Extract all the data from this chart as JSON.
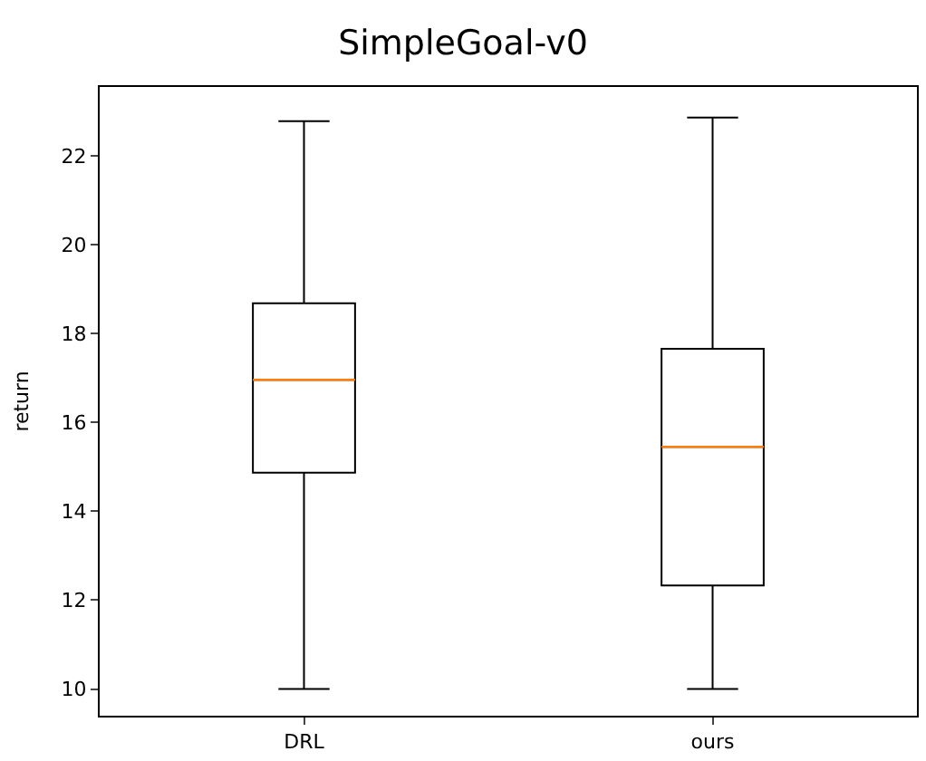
{
  "chart_data": {
    "type": "box",
    "title": "SimpleGoal-v0",
    "ylabel": "return",
    "categories": [
      "DRL",
      "ours"
    ],
    "boxes": [
      {
        "low": 10.0,
        "q1": 14.87,
        "median": 16.96,
        "q3": 18.68,
        "high": 22.78
      },
      {
        "low": 10.0,
        "q1": 12.33,
        "median": 15.45,
        "q3": 17.66,
        "high": 22.86
      }
    ],
    "color": "#000000",
    "ylim": [
      9.4,
      23.55
    ],
    "yticks": [
      10,
      12,
      14,
      16,
      18,
      20,
      22
    ]
  }
}
